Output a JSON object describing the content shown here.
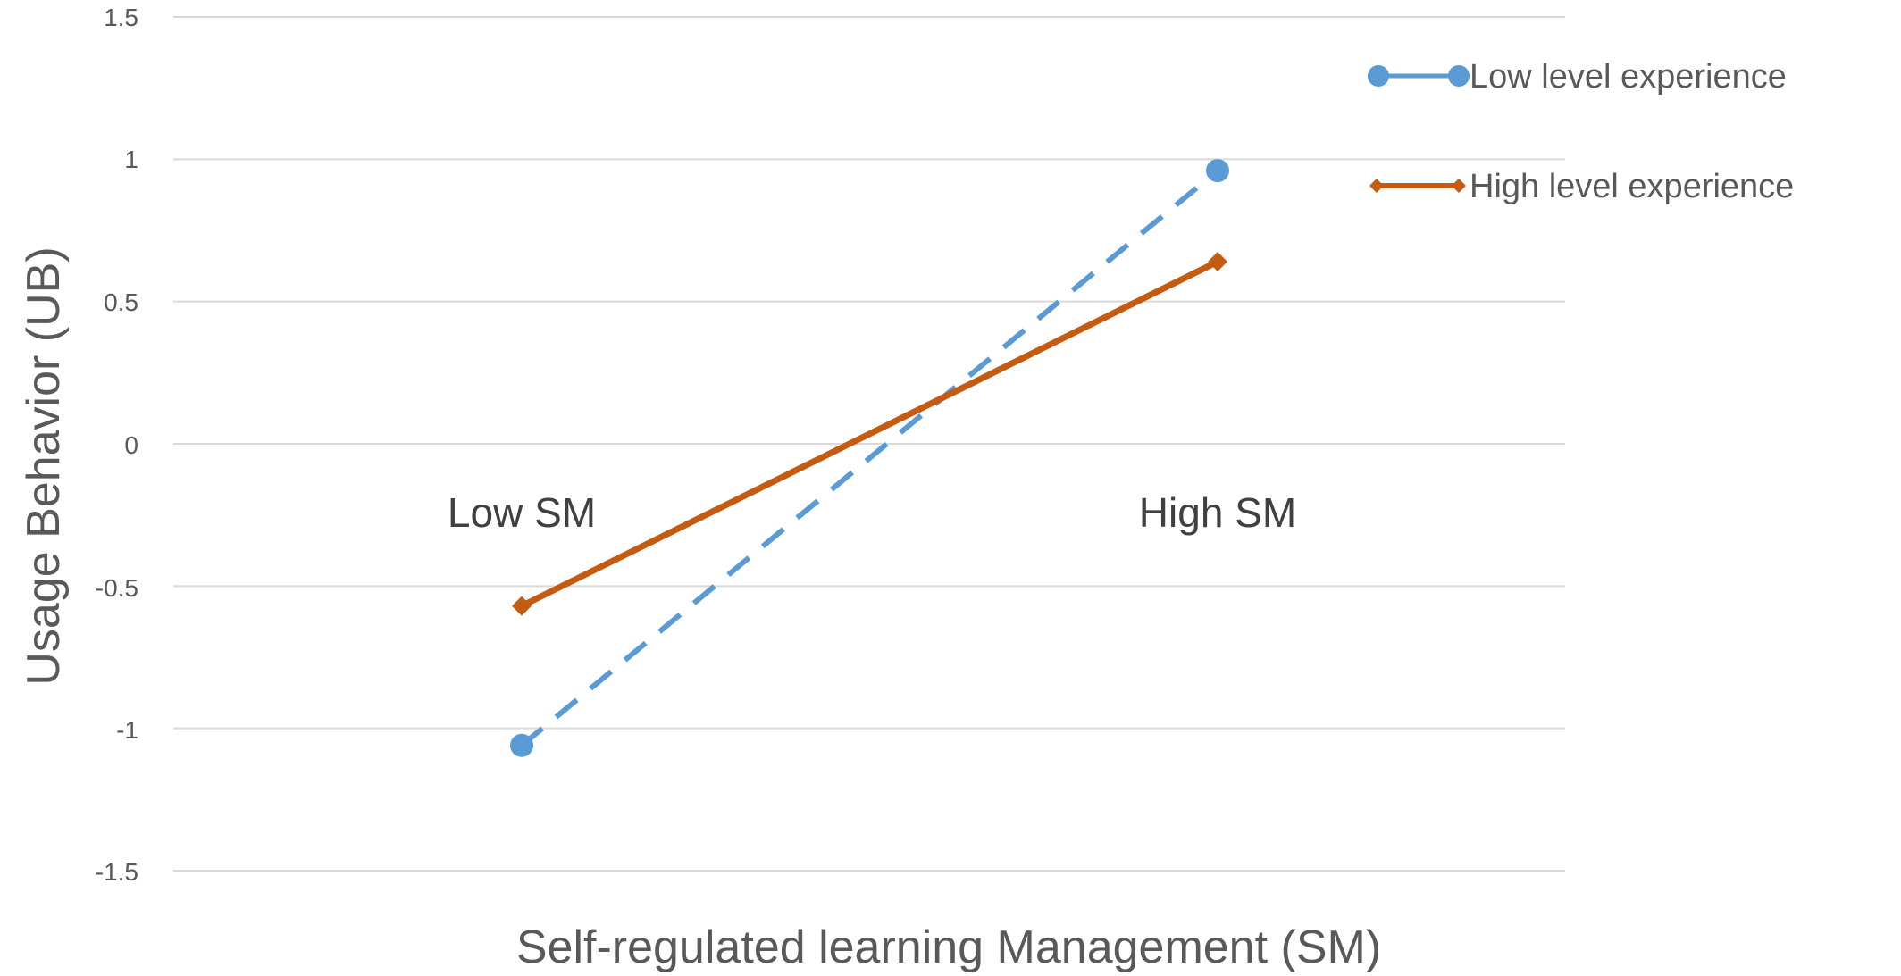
{
  "chart_data": {
    "type": "line",
    "title": "",
    "xlabel": "Self-regulated learning Management (SM)",
    "ylabel": "Usage Behavior (UB)",
    "categories": [
      "Low SM",
      "High SM"
    ],
    "ylim": [
      -1.5,
      1.5
    ],
    "yticks": [
      "1.5",
      "1",
      "0.5",
      "0",
      "-0.5",
      "-1",
      "-1.5"
    ],
    "grid": "horizontal",
    "legend_position": "right",
    "series": [
      {
        "name": "Low level experience",
        "values": [
          -1.06,
          0.96
        ],
        "color": "#5B9BD5",
        "line_style": "dashed",
        "marker": "circle"
      },
      {
        "name": "High level experience",
        "values": [
          -0.57,
          0.64
        ],
        "color": "#C55A11",
        "line_style": "solid",
        "marker": "diamond"
      }
    ]
  }
}
